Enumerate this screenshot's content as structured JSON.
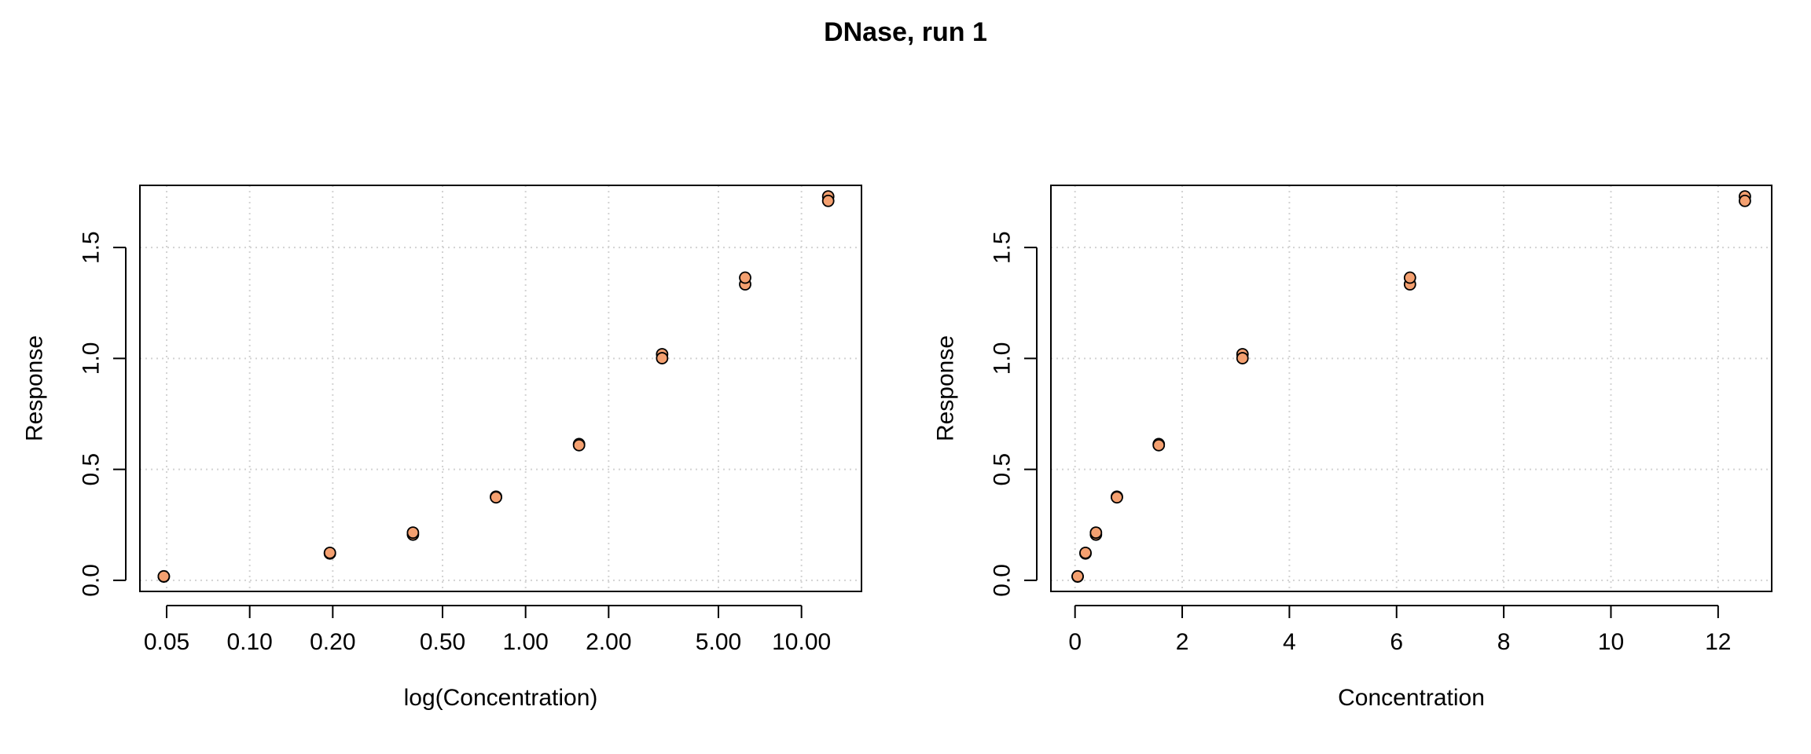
{
  "title": "DNase, run 1",
  "colors": {
    "point_fill": "#f4a070",
    "point_stroke": "#000000",
    "grid": "#d3d3d3"
  },
  "chart_data": [
    {
      "type": "scatter",
      "title": "",
      "xlabel": "log(Concentration)",
      "ylabel": "Response",
      "x_scale": "log",
      "xlim": [
        0.04,
        16.5
      ],
      "ylim": [
        -0.05,
        1.78
      ],
      "x_ticks": [
        0.05,
        0.1,
        0.2,
        0.5,
        1,
        2,
        5,
        10
      ],
      "x_tick_labels": [
        "0.05",
        "0.10",
        "0.20",
        "0.50",
        "1.00",
        "2.00",
        "5.00",
        "10.00"
      ],
      "y_ticks": [
        0,
        0.5,
        1,
        1.5
      ],
      "y_tick_labels": [
        "0.0",
        "0.5",
        "1.0",
        "1.5"
      ],
      "grid": true,
      "x": [
        0.04882812,
        0.04882812,
        0.1953125,
        0.1953125,
        0.390625,
        0.390625,
        0.78125,
        0.78125,
        1.5625,
        1.5625,
        3.125,
        3.125,
        6.25,
        6.25,
        12.5,
        12.5
      ],
      "y": [
        0.017,
        0.018,
        0.121,
        0.124,
        0.206,
        0.215,
        0.377,
        0.374,
        0.614,
        0.609,
        1.019,
        1.001,
        1.334,
        1.364,
        1.73,
        1.71
      ]
    },
    {
      "type": "scatter",
      "title": "",
      "xlabel": "Concentration",
      "ylabel": "Response",
      "x_scale": "linear",
      "xlim": [
        -0.45,
        13
      ],
      "ylim": [
        -0.05,
        1.78
      ],
      "x_ticks": [
        0,
        2,
        4,
        6,
        8,
        10,
        12
      ],
      "x_tick_labels": [
        "0",
        "2",
        "4",
        "6",
        "8",
        "10",
        "12"
      ],
      "y_ticks": [
        0,
        0.5,
        1,
        1.5
      ],
      "y_tick_labels": [
        "0.0",
        "0.5",
        "1.0",
        "1.5"
      ],
      "grid": true,
      "x": [
        0.04882812,
        0.04882812,
        0.1953125,
        0.1953125,
        0.390625,
        0.390625,
        0.78125,
        0.78125,
        1.5625,
        1.5625,
        3.125,
        3.125,
        6.25,
        6.25,
        12.5,
        12.5
      ],
      "y": [
        0.017,
        0.018,
        0.121,
        0.124,
        0.206,
        0.215,
        0.377,
        0.374,
        0.614,
        0.609,
        1.019,
        1.001,
        1.334,
        1.364,
        1.73,
        1.71
      ]
    }
  ]
}
